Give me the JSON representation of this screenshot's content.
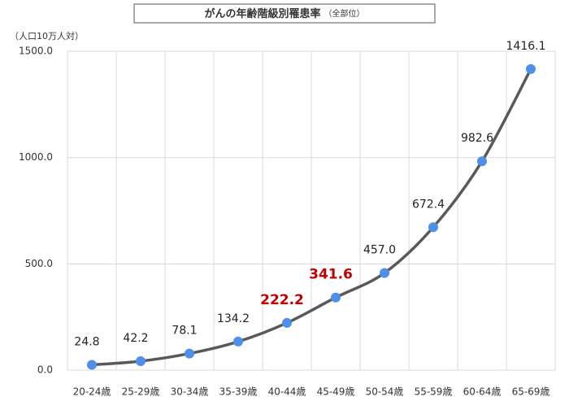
{
  "chart_data": {
    "type": "line",
    "title": "がんの年齢階級別罹患率",
    "subtitle": "（全部位）",
    "y_label": "（人口10万人対）",
    "categories": [
      "20-24歳",
      "25-29歳",
      "30-34歳",
      "35-39歳",
      "40-44歳",
      "45-49歳",
      "50-54歳",
      "55-59歳",
      "60-64歳",
      "65-69歳"
    ],
    "values": [
      24.8,
      42.2,
      78.1,
      134.2,
      222.2,
      341.6,
      457.0,
      672.4,
      982.6,
      1416.1
    ],
    "value_labels": [
      "24.8",
      "42.2",
      "78.1",
      "134.2",
      "222.2",
      "341.6",
      "457.0",
      "672.4",
      "982.6",
      "1416.1"
    ],
    "label_colors": [
      "#222222",
      "#222222",
      "#222222",
      "#222222",
      "#c00000",
      "#c00000",
      "#222222",
      "#222222",
      "#222222",
      "#222222"
    ],
    "line_color": "#595959",
    "marker_color": "#4f8fe8",
    "ylim": [
      0,
      1500
    ],
    "yticks": [
      {
        "value": 0,
        "label": "0.0"
      },
      {
        "value": 500,
        "label": "500.0"
      },
      {
        "value": 1000,
        "label": "1000.0"
      },
      {
        "value": 1500,
        "label": "1500.0"
      }
    ],
    "grid": true
  }
}
